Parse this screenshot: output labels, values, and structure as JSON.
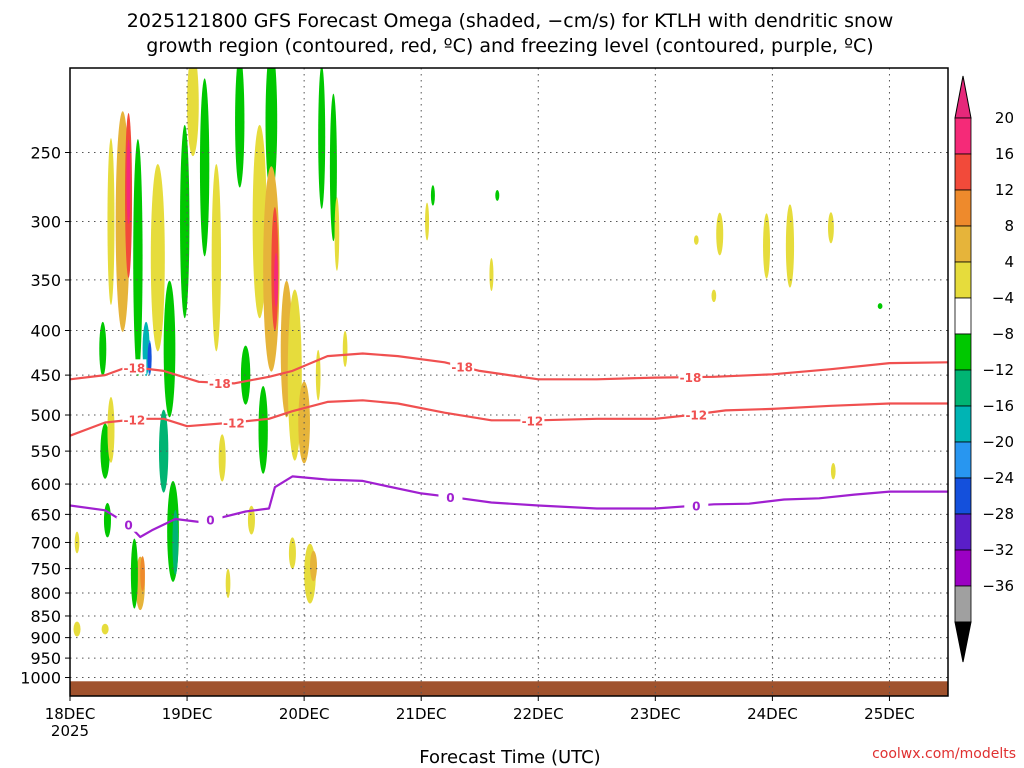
{
  "chart_data": {
    "type": "heatmap",
    "title_lines": [
      "2025121800 GFS Forecast Omega (shaded, −cm/s) for KTLH with dendritic snow",
      "growth region (contoured, red, ºC) and freezing level (contoured, purple, ºC)"
    ],
    "xlabel": "Forecast Time (UTC)",
    "x_ticks": [
      "18DEC",
      "19DEC",
      "20DEC",
      "21DEC",
      "22DEC",
      "23DEC",
      "24DEC",
      "25DEC"
    ],
    "x_tick_sub": "2025",
    "x_range_days": [
      0,
      7.5
    ],
    "y_ticks": [
      250,
      300,
      350,
      400,
      450,
      500,
      550,
      600,
      650,
      700,
      750,
      800,
      850,
      900,
      950,
      1000
    ],
    "y_range_hpa": [
      200,
      1050
    ],
    "grid": true,
    "source_label": "coolwx.com/modelts",
    "colorbar": {
      "labels": [
        "20",
        "16",
        "12",
        "8",
        "4",
        "−4",
        "−8",
        "−12",
        "−16",
        "−20",
        "−24",
        "−28",
        "−32",
        "−36"
      ],
      "colors": [
        "#f52a78",
        "#f24a3a",
        "#ee8a2c",
        "#e6b43a",
        "#e6dc3c",
        "#ffffff",
        "#00c800",
        "#00b473",
        "#00b4b4",
        "#2896f0",
        "#1450dc",
        "#5a1ec8",
        "#9b00c3",
        "#a0a0a0"
      ],
      "top_arrow_color": "#e6287a",
      "bottom_arrow_color": "#000000"
    },
    "contours": [
      {
        "label": "-18",
        "color": "#f05050",
        "label_days": [
          0.55,
          1.28,
          3.35,
          5.3
        ],
        "points": [
          [
            0,
            455
          ],
          [
            0.3,
            450
          ],
          [
            0.5,
            440
          ],
          [
            0.8,
            445
          ],
          [
            1.1,
            458
          ],
          [
            1.4,
            460
          ],
          [
            1.7,
            452
          ],
          [
            1.9,
            445
          ],
          [
            2.2,
            428
          ],
          [
            2.5,
            425
          ],
          [
            2.8,
            428
          ],
          [
            3.2,
            435
          ],
          [
            3.5,
            445
          ],
          [
            4.0,
            455
          ],
          [
            4.5,
            455
          ],
          [
            5.0,
            453
          ],
          [
            5.5,
            452
          ],
          [
            6.0,
            449
          ],
          [
            6.5,
            443
          ],
          [
            7.0,
            436
          ],
          [
            7.5,
            435
          ]
        ]
      },
      {
        "label": "-12",
        "color": "#f05050",
        "label_days": [
          0.55,
          1.4,
          3.95,
          5.35
        ],
        "points": [
          [
            0,
            528
          ],
          [
            0.3,
            510
          ],
          [
            0.6,
            505
          ],
          [
            0.8,
            505
          ],
          [
            1.0,
            515
          ],
          [
            1.4,
            510
          ],
          [
            1.7,
            505
          ],
          [
            1.9,
            495
          ],
          [
            2.2,
            483
          ],
          [
            2.5,
            481
          ],
          [
            2.8,
            485
          ],
          [
            3.2,
            497
          ],
          [
            3.6,
            507
          ],
          [
            4.0,
            507
          ],
          [
            4.5,
            505
          ],
          [
            5.0,
            505
          ],
          [
            5.3,
            500
          ],
          [
            5.6,
            494
          ],
          [
            6.0,
            492
          ],
          [
            6.5,
            488
          ],
          [
            7.0,
            485
          ],
          [
            7.5,
            485
          ]
        ]
      },
      {
        "label": "0",
        "color": "#a020d0",
        "label_days": [
          0.5,
          1.2,
          3.25,
          5.35
        ],
        "points": [
          [
            0,
            635
          ],
          [
            0.3,
            643
          ],
          [
            0.5,
            668
          ],
          [
            0.6,
            690
          ],
          [
            0.7,
            678
          ],
          [
            0.9,
            658
          ],
          [
            1.1,
            663
          ],
          [
            1.3,
            655
          ],
          [
            1.5,
            645
          ],
          [
            1.7,
            640
          ],
          [
            1.75,
            605
          ],
          [
            1.9,
            588
          ],
          [
            2.2,
            593
          ],
          [
            2.5,
            595
          ],
          [
            2.7,
            603
          ],
          [
            3.0,
            615
          ],
          [
            3.3,
            622
          ],
          [
            3.6,
            630
          ],
          [
            4.0,
            635
          ],
          [
            4.5,
            640
          ],
          [
            5.0,
            640
          ],
          [
            5.5,
            633
          ],
          [
            5.8,
            632
          ],
          [
            6.1,
            625
          ],
          [
            6.4,
            623
          ],
          [
            6.7,
            617
          ],
          [
            7.0,
            612
          ],
          [
            7.5,
            612
          ]
        ]
      }
    ],
    "omega_blobs": [
      {
        "d": 0.28,
        "p": 420,
        "w": 0.03,
        "h": 60,
        "c": "#00c800"
      },
      {
        "d": 0.3,
        "p": 550,
        "w": 0.04,
        "h": 80,
        "c": "#00c800"
      },
      {
        "d": 0.32,
        "p": 660,
        "w": 0.03,
        "h": 60,
        "c": "#00c800"
      },
      {
        "d": 0.3,
        "p": 880,
        "w": 0.03,
        "h": 25,
        "c": "#e6dc3c"
      },
      {
        "d": 0.06,
        "p": 880,
        "w": 0.03,
        "h": 35,
        "c": "#e6dc3c"
      },
      {
        "d": 0.06,
        "p": 700,
        "w": 0.02,
        "h": 40,
        "c": "#e6dc3c"
      },
      {
        "d": 0.35,
        "p": 300,
        "w": 0.03,
        "h": 130,
        "c": "#e6dc3c"
      },
      {
        "d": 0.35,
        "p": 520,
        "w": 0.03,
        "h": 90,
        "c": "#e6dc3c"
      },
      {
        "d": 0.45,
        "p": 300,
        "w": 0.06,
        "h": 170,
        "c": "#e6b43a"
      },
      {
        "d": 0.5,
        "p": 280,
        "w": 0.03,
        "h": 120,
        "c": "#f24a3a"
      },
      {
        "d": 0.5,
        "p": 270,
        "w": 0.015,
        "h": 60,
        "c": "#f52a78"
      },
      {
        "d": 0.58,
        "p": 330,
        "w": 0.04,
        "h": 200,
        "c": "#00c800"
      },
      {
        "d": 0.65,
        "p": 420,
        "w": 0.03,
        "h": 60,
        "c": "#00b4b4"
      },
      {
        "d": 0.68,
        "p": 430,
        "w": 0.015,
        "h": 40,
        "c": "#2896f0"
      },
      {
        "d": 0.68,
        "p": 430,
        "w": 0.008,
        "h": 35,
        "c": "#1450dc"
      },
      {
        "d": 0.6,
        "p": 780,
        "w": 0.04,
        "h": 110,
        "c": "#e6b43a"
      },
      {
        "d": 0.62,
        "p": 760,
        "w": 0.02,
        "h": 70,
        "c": "#ee8a2c"
      },
      {
        "d": 0.55,
        "p": 760,
        "w": 0.03,
        "h": 140,
        "c": "#00c800"
      },
      {
        "d": 0.75,
        "p": 330,
        "w": 0.06,
        "h": 160,
        "c": "#e6dc3c"
      },
      {
        "d": 0.8,
        "p": 550,
        "w": 0.04,
        "h": 120,
        "c": "#00b473"
      },
      {
        "d": 0.85,
        "p": 420,
        "w": 0.05,
        "h": 150,
        "c": "#00c800"
      },
      {
        "d": 0.88,
        "p": 680,
        "w": 0.05,
        "h": 180,
        "c": "#00c800"
      },
      {
        "d": 0.9,
        "p": 700,
        "w": 0.025,
        "h": 120,
        "c": "#00b473"
      },
      {
        "d": 0.98,
        "p": 300,
        "w": 0.04,
        "h": 150,
        "c": "#00c800"
      },
      {
        "d": 1.05,
        "p": 220,
        "w": 0.05,
        "h": 60,
        "c": "#e6dc3c"
      },
      {
        "d": 1.15,
        "p": 260,
        "w": 0.04,
        "h": 120,
        "c": "#00c800"
      },
      {
        "d": 1.25,
        "p": 330,
        "w": 0.04,
        "h": 160,
        "c": "#e6dc3c"
      },
      {
        "d": 1.3,
        "p": 560,
        "w": 0.03,
        "h": 70,
        "c": "#e6dc3c"
      },
      {
        "d": 1.35,
        "p": 780,
        "w": 0.02,
        "h": 60,
        "c": "#e6dc3c"
      },
      {
        "d": 1.45,
        "p": 230,
        "w": 0.04,
        "h": 80,
        "c": "#00c800"
      },
      {
        "d": 1.5,
        "p": 450,
        "w": 0.04,
        "h": 70,
        "c": "#00c800"
      },
      {
        "d": 1.55,
        "p": 660,
        "w": 0.03,
        "h": 50,
        "c": "#e6dc3c"
      },
      {
        "d": 1.62,
        "p": 300,
        "w": 0.06,
        "h": 150,
        "c": "#e6dc3c"
      },
      {
        "d": 1.65,
        "p": 520,
        "w": 0.04,
        "h": 120,
        "c": "#00c800"
      },
      {
        "d": 1.72,
        "p": 230,
        "w": 0.05,
        "h": 90,
        "c": "#00c800"
      },
      {
        "d": 1.72,
        "p": 340,
        "w": 0.07,
        "h": 180,
        "c": "#e6b43a"
      },
      {
        "d": 1.75,
        "p": 340,
        "w": 0.03,
        "h": 110,
        "c": "#f24a3a"
      },
      {
        "d": 1.76,
        "p": 350,
        "w": 0.012,
        "h": 50,
        "c": "#f52a78"
      },
      {
        "d": 1.85,
        "p": 420,
        "w": 0.05,
        "h": 150,
        "c": "#e6b43a"
      },
      {
        "d": 1.92,
        "p": 450,
        "w": 0.06,
        "h": 200,
        "c": "#e6dc3c"
      },
      {
        "d": 2.0,
        "p": 510,
        "w": 0.05,
        "h": 110,
        "c": "#e6b43a"
      },
      {
        "d": 1.9,
        "p": 720,
        "w": 0.03,
        "h": 60,
        "c": "#e6dc3c"
      },
      {
        "d": 2.05,
        "p": 760,
        "w": 0.05,
        "h": 120,
        "c": "#e6dc3c"
      },
      {
        "d": 2.08,
        "p": 745,
        "w": 0.03,
        "h": 60,
        "c": "#e6b43a"
      },
      {
        "d": 2.12,
        "p": 450,
        "w": 0.02,
        "h": 60,
        "c": "#e6dc3c"
      },
      {
        "d": 2.15,
        "p": 240,
        "w": 0.03,
        "h": 90,
        "c": "#00c800"
      },
      {
        "d": 2.25,
        "p": 260,
        "w": 0.03,
        "h": 100,
        "c": "#00c800"
      },
      {
        "d": 2.28,
        "p": 310,
        "w": 0.02,
        "h": 60,
        "c": "#e6dc3c"
      },
      {
        "d": 2.35,
        "p": 420,
        "w": 0.02,
        "h": 40,
        "c": "#e6dc3c"
      },
      {
        "d": 3.05,
        "p": 300,
        "w": 0.015,
        "h": 30,
        "c": "#e6dc3c"
      },
      {
        "d": 3.1,
        "p": 280,
        "w": 0.01,
        "h": 15,
        "c": "#00c800"
      },
      {
        "d": 3.6,
        "p": 345,
        "w": 0.015,
        "h": 30,
        "c": "#e6dc3c"
      },
      {
        "d": 3.65,
        "p": 280,
        "w": 0.008,
        "h": 8,
        "c": "#00c800"
      },
      {
        "d": 5.35,
        "p": 315,
        "w": 0.02,
        "h": 8,
        "c": "#e6dc3c"
      },
      {
        "d": 5.55,
        "p": 310,
        "w": 0.03,
        "h": 35,
        "c": "#e6dc3c"
      },
      {
        "d": 5.5,
        "p": 365,
        "w": 0.02,
        "h": 12,
        "c": "#e6dc3c"
      },
      {
        "d": 5.95,
        "p": 320,
        "w": 0.03,
        "h": 55,
        "c": "#e6dc3c"
      },
      {
        "d": 6.15,
        "p": 320,
        "w": 0.035,
        "h": 70,
        "c": "#e6dc3c"
      },
      {
        "d": 6.5,
        "p": 305,
        "w": 0.025,
        "h": 25,
        "c": "#e6dc3c"
      },
      {
        "d": 6.92,
        "p": 375,
        "w": 0.02,
        "h": 5,
        "c": "#00c800"
      },
      {
        "d": 6.52,
        "p": 580,
        "w": 0.02,
        "h": 25,
        "c": "#e6dc3c"
      }
    ]
  }
}
